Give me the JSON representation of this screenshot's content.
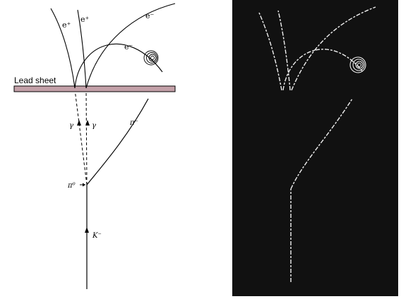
{
  "diagram": {
    "lead_label": "Lead sheet",
    "particles": {
      "e_plus_1": "e⁺",
      "e_plus_2": "e⁺",
      "e_minus_1": "e⁻",
      "e_minus_2": "e⁻",
      "gamma_1": "γ",
      "gamma_2": "γ",
      "pi_minus": "π⁻",
      "pi_zero": "π⁰",
      "k_minus": "K⁻"
    },
    "colors": {
      "lead_fill": "#c3a0a8",
      "track": "#000000"
    }
  },
  "photo": {
    "colors": {
      "background": "#111111",
      "track": "#f0f0f0"
    }
  }
}
